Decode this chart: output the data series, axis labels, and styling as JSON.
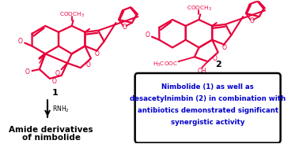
{
  "background_color": "#ffffff",
  "box_text_line1": "Nimbolide (1) as well as",
  "box_text_line2": "desacetylnimbin (2) in combination with",
  "box_text_line3": "antibiotics demonstrated significant",
  "box_text_line4": "synergistic activity",
  "box_text_color": "#0000cd",
  "box_edge_color": "#000000",
  "struct1_label": "1",
  "struct2_label": "2",
  "arrow_label": "RNH",
  "bottom_label_line1": "Amide derivatives",
  "bottom_label_line2": "of nimbolide",
  "label_color": "#000000",
  "struct_color": "#e8003a",
  "figw": 3.78,
  "figh": 1.83,
  "dpi": 100
}
